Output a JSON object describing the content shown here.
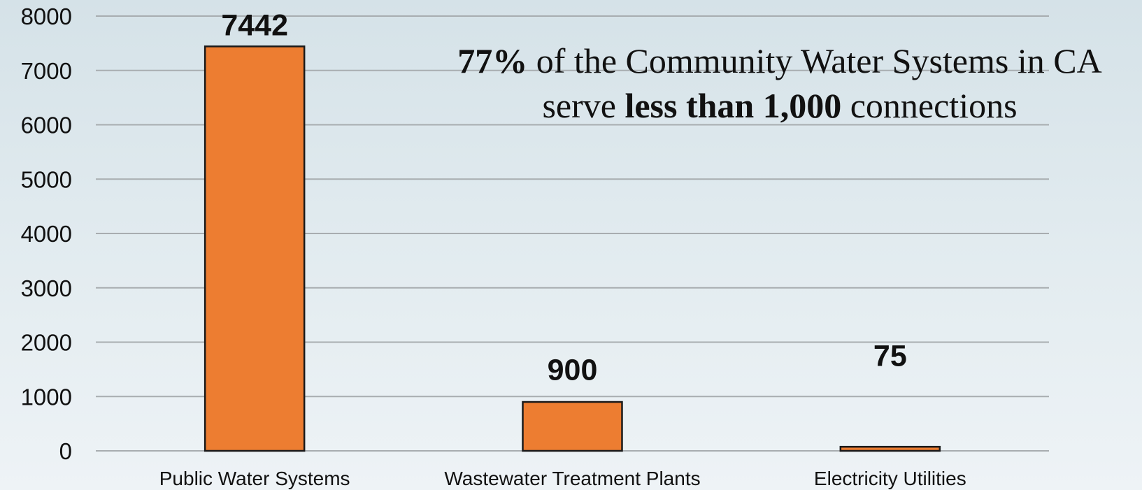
{
  "chart_data": {
    "type": "bar",
    "categories": [
      "Public Water Systems",
      "Wastewater Treatment Plants",
      "Electricity Utilities"
    ],
    "values": [
      7442,
      900,
      75
    ],
    "data_labels": [
      "7442",
      "900",
      "75"
    ],
    "ylim": [
      0,
      8000
    ],
    "yticks": [
      0,
      1000,
      2000,
      3000,
      4000,
      5000,
      6000,
      7000,
      8000
    ],
    "title": "",
    "xlabel": "",
    "ylabel": "",
    "grid": true,
    "legend": "none",
    "bar_color": "#ed7d31",
    "bar_edge_color": "#1a1a1a",
    "gridline_color": "#a8adb0",
    "annotation": {
      "line1_bold": "77%",
      "line1_rest": " of the Community Water Systems in CA",
      "line2_pre": "serve ",
      "line2_bold": "less than 1,000",
      "line2_post": " connections"
    }
  }
}
